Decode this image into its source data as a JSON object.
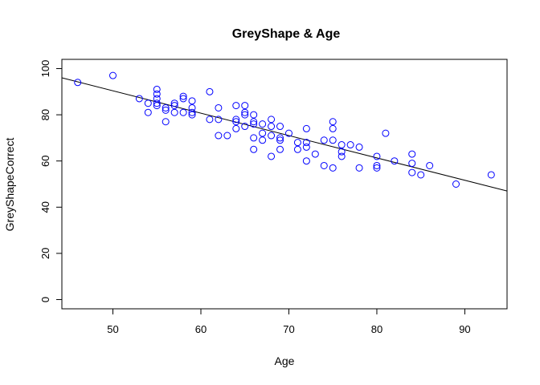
{
  "chart_data": {
    "type": "scatter",
    "title": "GreyShape & Age",
    "xlabel": "Age",
    "ylabel": "GreyShapeCorrect",
    "xlim": [
      44.2,
      94.8
    ],
    "ylim": [
      -4,
      104
    ],
    "xticks": [
      50,
      60,
      70,
      80,
      90
    ],
    "yticks": [
      0,
      20,
      40,
      60,
      80,
      100
    ],
    "grid": false,
    "point_color": "#0000ff",
    "regression_line": {
      "x": [
        44.2,
        94.8
      ],
      "y": [
        96,
        47
      ]
    },
    "points": [
      [
        46,
        94
      ],
      [
        50,
        97
      ],
      [
        53,
        87
      ],
      [
        54,
        85
      ],
      [
        54,
        81
      ],
      [
        55,
        91
      ],
      [
        55,
        89
      ],
      [
        55,
        87
      ],
      [
        55,
        85
      ],
      [
        55,
        84
      ],
      [
        56,
        83
      ],
      [
        56,
        82
      ],
      [
        56,
        77
      ],
      [
        57,
        85
      ],
      [
        57,
        84
      ],
      [
        57,
        81
      ],
      [
        58,
        88
      ],
      [
        58,
        87
      ],
      [
        58,
        81
      ],
      [
        59,
        86
      ],
      [
        59,
        83
      ],
      [
        59,
        81
      ],
      [
        59,
        80
      ],
      [
        61,
        90
      ],
      [
        61,
        78
      ],
      [
        62,
        83
      ],
      [
        62,
        78
      ],
      [
        62,
        71
      ],
      [
        63,
        71
      ],
      [
        64,
        84
      ],
      [
        64,
        78
      ],
      [
        64,
        77
      ],
      [
        64,
        74
      ],
      [
        65,
        84
      ],
      [
        65,
        81
      ],
      [
        65,
        80
      ],
      [
        65,
        75
      ],
      [
        66,
        80
      ],
      [
        66,
        77
      ],
      [
        66,
        76
      ],
      [
        66,
        70
      ],
      [
        66,
        65
      ],
      [
        67,
        76
      ],
      [
        67,
        72
      ],
      [
        67,
        69
      ],
      [
        68,
        78
      ],
      [
        68,
        75
      ],
      [
        68,
        71
      ],
      [
        68,
        62
      ],
      [
        69,
        75
      ],
      [
        69,
        70
      ],
      [
        69,
        69
      ],
      [
        69,
        65
      ],
      [
        70,
        72
      ],
      [
        71,
        68
      ],
      [
        71,
        65
      ],
      [
        72,
        74
      ],
      [
        72,
        68
      ],
      [
        72,
        66
      ],
      [
        72,
        60
      ],
      [
        73,
        63
      ],
      [
        74,
        69
      ],
      [
        74,
        58
      ],
      [
        75,
        77
      ],
      [
        75,
        74
      ],
      [
        75,
        69
      ],
      [
        75,
        57
      ],
      [
        76,
        67
      ],
      [
        76,
        64
      ],
      [
        76,
        62
      ],
      [
        77,
        67
      ],
      [
        78,
        66
      ],
      [
        78,
        57
      ],
      [
        80,
        62
      ],
      [
        80,
        58
      ],
      [
        80,
        57
      ],
      [
        81,
        72
      ],
      [
        82,
        60
      ],
      [
        84,
        63
      ],
      [
        84,
        59
      ],
      [
        84,
        55
      ],
      [
        85,
        54
      ],
      [
        86,
        58
      ],
      [
        89,
        50
      ],
      [
        93,
        54
      ]
    ]
  }
}
